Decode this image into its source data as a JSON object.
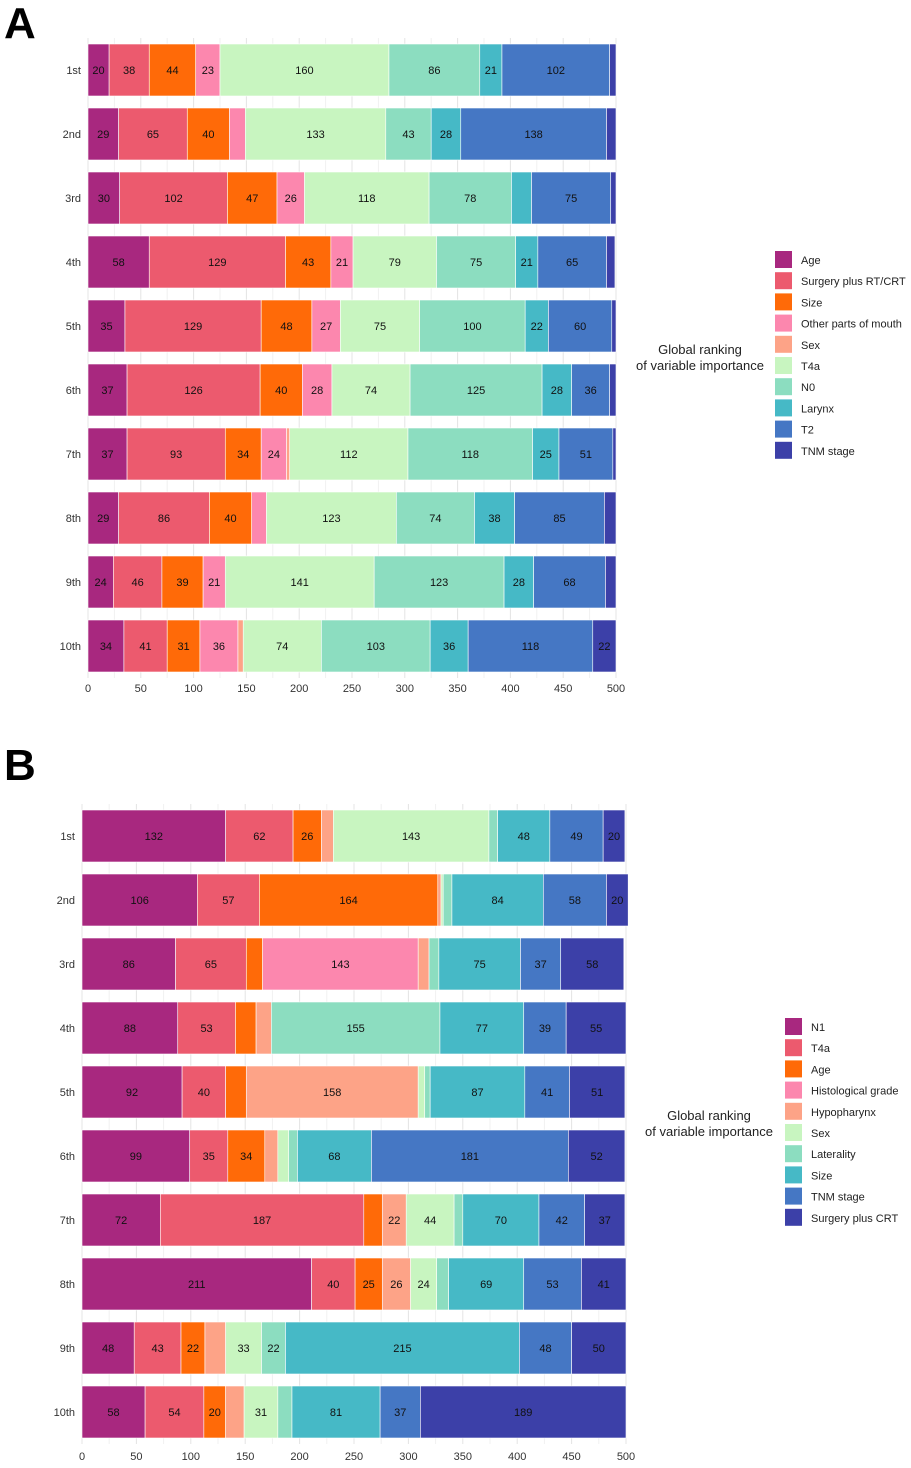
{
  "figure": {
    "panel_labels": [
      "A",
      "B"
    ]
  },
  "chart_data": [
    {
      "type": "bar",
      "orientation": "horizontal",
      "stacked": true,
      "panel": "A",
      "title": "",
      "xlabel": "",
      "ylabel": "",
      "xlim": [
        0,
        500
      ],
      "x_ticks": [
        0,
        50,
        100,
        150,
        200,
        250,
        300,
        350,
        400,
        450,
        500
      ],
      "grid": true,
      "legend_title": [
        "Global ranking",
        "of variable importance"
      ],
      "legend_position": "right",
      "categories": [
        "1st",
        "2nd",
        "3rd",
        "4th",
        "5th",
        "6th",
        "7th",
        "8th",
        "9th",
        "10th"
      ],
      "series": [
        {
          "name": "Age",
          "color": "#A8287F",
          "values": [
            20,
            29,
            30,
            58,
            35,
            37,
            37,
            29,
            24,
            34
          ]
        },
        {
          "name": "Surgery plus RT/CRT",
          "color": "#EC5A6E",
          "values": [
            38,
            65,
            102,
            129,
            129,
            126,
            93,
            86,
            46,
            41
          ]
        },
        {
          "name": "Size",
          "color": "#FF6A08",
          "values": [
            44,
            40,
            47,
            43,
            48,
            40,
            34,
            40,
            39,
            31
          ]
        },
        {
          "name": "Other parts of mouth",
          "color": "#FC87AE",
          "values": [
            23,
            15,
            26,
            21,
            27,
            28,
            24,
            14,
            21,
            36
          ]
        },
        {
          "name": "Sex",
          "color": "#FDA387",
          "values": [
            0,
            0,
            0,
            0,
            0,
            0,
            3,
            0,
            0,
            5
          ]
        },
        {
          "name": "T4a",
          "color": "#C8F5C0",
          "values": [
            160,
            133,
            118,
            79,
            75,
            74,
            112,
            123,
            141,
            74
          ]
        },
        {
          "name": "N0",
          "color": "#8CDDC0",
          "values": [
            86,
            43,
            78,
            75,
            100,
            125,
            118,
            74,
            123,
            103
          ]
        },
        {
          "name": "Larynx",
          "color": "#46B9C6",
          "values": [
            21,
            28,
            19,
            21,
            22,
            28,
            25,
            38,
            28,
            36
          ]
        },
        {
          "name": "T2",
          "color": "#4577C4",
          "values": [
            102,
            138,
            75,
            65,
            60,
            36,
            51,
            85,
            68,
            118
          ]
        },
        {
          "name": "TNM stage",
          "color": "#3C40A8",
          "values": [
            6,
            9,
            5,
            8,
            4,
            6,
            3,
            11,
            10,
            22
          ]
        }
      ],
      "data_labels": [
        [
          "20",
          "38",
          "44",
          "23",
          "",
          "160",
          "86",
          "21",
          "102",
          ""
        ],
        [
          "29",
          "65",
          "40",
          "",
          "",
          "133",
          "43",
          "28",
          "138",
          ""
        ],
        [
          "30",
          "102",
          "47",
          "26",
          "",
          "118",
          "78",
          "",
          "75",
          ""
        ],
        [
          "58",
          "129",
          "43",
          "21",
          "",
          "79",
          "75",
          "21",
          "65",
          ""
        ],
        [
          "35",
          "129",
          "48",
          "27",
          "",
          "75",
          "100",
          "22",
          "60",
          ""
        ],
        [
          "37",
          "126",
          "40",
          "28",
          "",
          "74",
          "125",
          "28",
          "36",
          ""
        ],
        [
          "37",
          "93",
          "34",
          "24",
          "",
          "112",
          "118",
          "25",
          "51",
          ""
        ],
        [
          "29",
          "86",
          "40",
          "",
          "",
          "123",
          "74",
          "38",
          "85",
          ""
        ],
        [
          "24",
          "46",
          "39",
          "21",
          "",
          "141",
          "123",
          "28",
          "68",
          ""
        ],
        [
          "34",
          "41",
          "31",
          "36",
          "",
          "74",
          "103",
          "36",
          "118",
          "22"
        ]
      ]
    },
    {
      "type": "bar",
      "orientation": "horizontal",
      "stacked": true,
      "panel": "B",
      "title": "",
      "xlabel": "",
      "ylabel": "",
      "xlim": [
        0,
        500
      ],
      "x_ticks": [
        0,
        50,
        100,
        150,
        200,
        250,
        300,
        350,
        400,
        450,
        500
      ],
      "grid": true,
      "legend_title": [
        "Global ranking",
        "of variable importance"
      ],
      "legend_position": "right",
      "categories": [
        "1st",
        "2nd",
        "3rd",
        "4th",
        "5th",
        "6th",
        "7th",
        "8th",
        "9th",
        "10th"
      ],
      "series": [
        {
          "name": "N1",
          "color": "#A8287F",
          "values": [
            132,
            106,
            86,
            88,
            92,
            99,
            72,
            211,
            48,
            58
          ]
        },
        {
          "name": "T4a",
          "color": "#EC5A6E",
          "values": [
            62,
            57,
            65,
            53,
            40,
            35,
            187,
            40,
            43,
            54
          ]
        },
        {
          "name": "Age",
          "color": "#FF6A08",
          "values": [
            26,
            164,
            15,
            19,
            19,
            34,
            17,
            25,
            22,
            20
          ]
        },
        {
          "name": "Histological grade",
          "color": "#FC87AE",
          "values": [
            0,
            0,
            143,
            0,
            0,
            0,
            0,
            0,
            0,
            0
          ]
        },
        {
          "name": "Hypopharynx",
          "color": "#FDA387",
          "values": [
            11,
            3,
            10,
            14,
            158,
            12,
            22,
            26,
            19,
            17
          ]
        },
        {
          "name": "Sex",
          "color": "#C8F5C0",
          "values": [
            143,
            2,
            0,
            0,
            6,
            10,
            44,
            24,
            33,
            31
          ]
        },
        {
          "name": "Laterality",
          "color": "#8CDDC0",
          "values": [
            8,
            8,
            9,
            155,
            5,
            8,
            8,
            11,
            22,
            13
          ]
        },
        {
          "name": "Size",
          "color": "#46B9C6",
          "values": [
            48,
            84,
            75,
            77,
            87,
            68,
            70,
            69,
            215,
            81
          ]
        },
        {
          "name": "TNM stage",
          "color": "#4577C4",
          "values": [
            49,
            58,
            37,
            39,
            41,
            181,
            42,
            53,
            48,
            37
          ]
        },
        {
          "name": "Surgery plus CRT",
          "color": "#3C40A8",
          "values": [
            20,
            20,
            58,
            55,
            51,
            52,
            37,
            41,
            50,
            189
          ]
        }
      ],
      "data_labels": [
        [
          "132",
          "62",
          "26",
          "",
          "",
          "143",
          "",
          "48",
          "49",
          "20"
        ],
        [
          "106",
          "57",
          "164",
          "",
          "",
          "",
          "",
          "84",
          "58",
          "20"
        ],
        [
          "86",
          "65",
          "",
          "143",
          "",
          "",
          "",
          "75",
          "37",
          "58"
        ],
        [
          "88",
          "53",
          "",
          "",
          "",
          "",
          "155",
          "77",
          "39",
          "55"
        ],
        [
          "92",
          "40",
          "",
          "",
          "158",
          "",
          "",
          "87",
          "41",
          "51"
        ],
        [
          "99",
          "35",
          "34",
          "",
          "",
          "",
          "",
          "68",
          "181",
          "52"
        ],
        [
          "72",
          "187",
          "",
          "",
          "22",
          "44",
          "",
          "70",
          "42",
          "37"
        ],
        [
          "211",
          "40",
          "25",
          "",
          "26",
          "24",
          "",
          "69",
          "53",
          "41"
        ],
        [
          "48",
          "43",
          "22",
          "",
          "",
          "33",
          "22",
          "215",
          "48",
          "50"
        ],
        [
          "58",
          "54",
          "20",
          "",
          "",
          "31",
          "",
          "81",
          "37",
          "189"
        ]
      ]
    }
  ]
}
